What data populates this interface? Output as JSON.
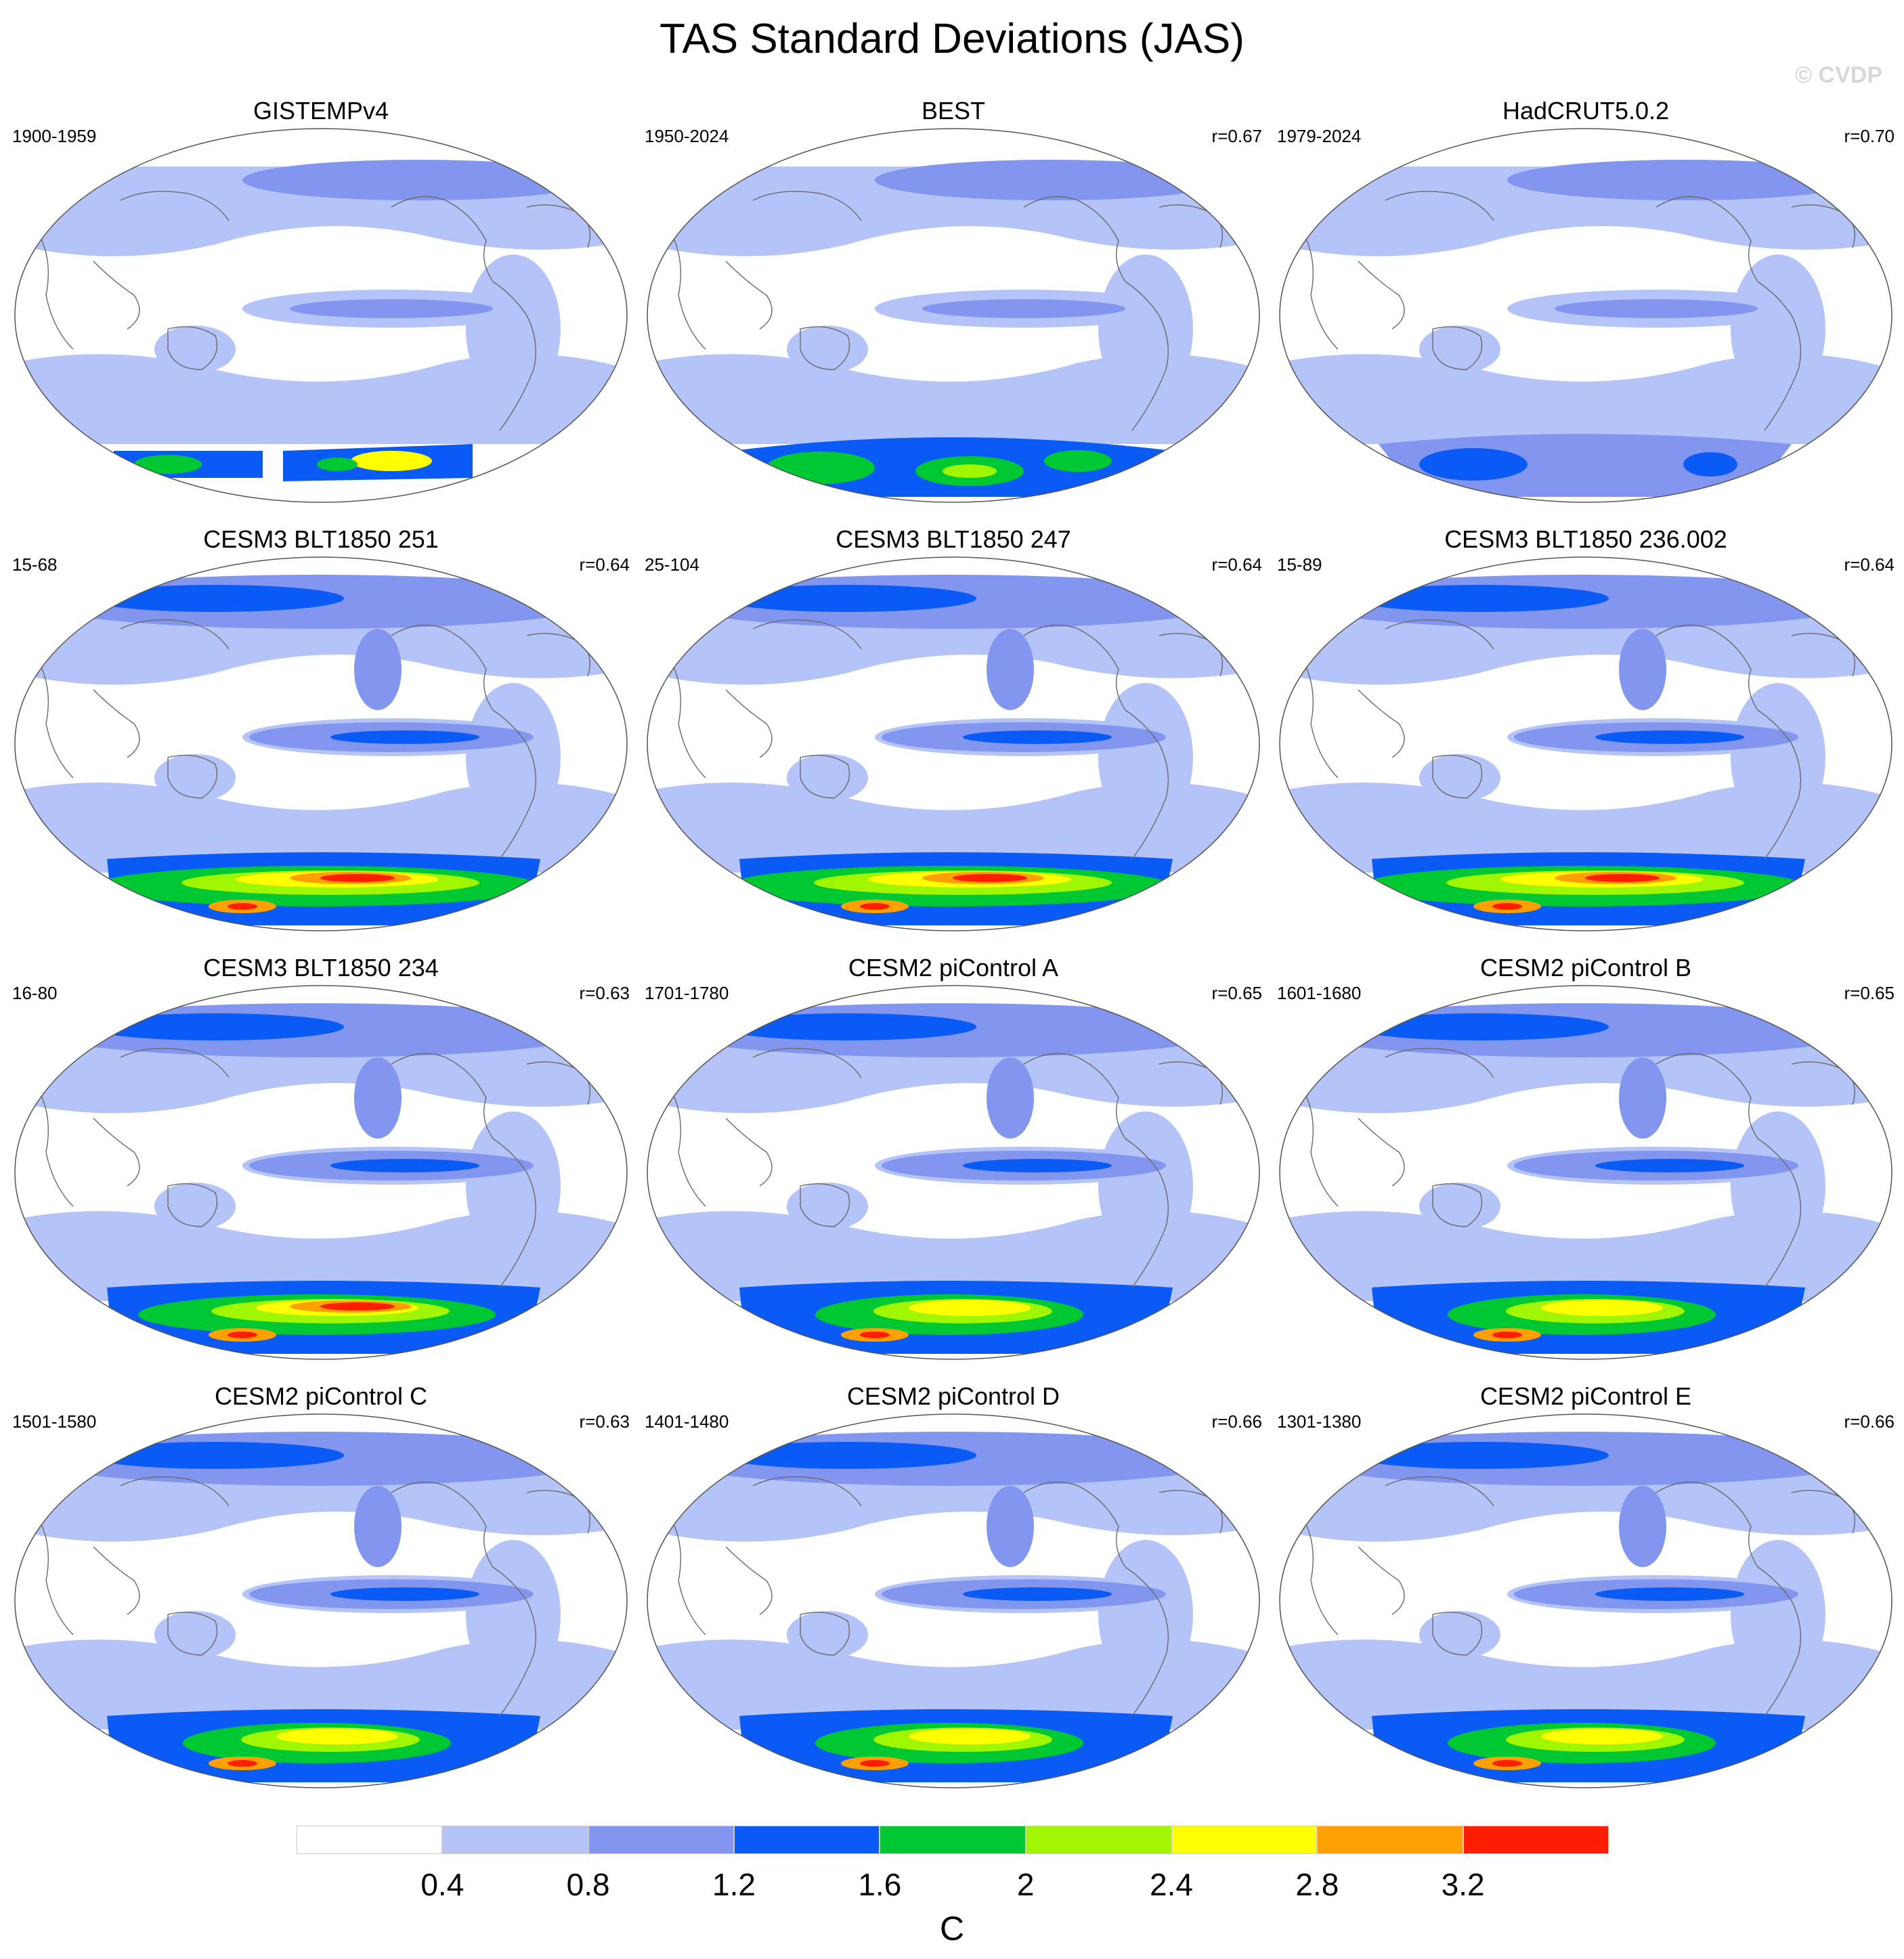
{
  "title": "TAS Standard Deviations (JAS)",
  "watermark": "© CVDP",
  "panels": [
    {
      "title": "GISTEMPv4",
      "period": "1900-1959",
      "corr": "",
      "style": "obs_gistemp"
    },
    {
      "title": "BEST",
      "period": "1950-2024",
      "corr": "r=0.67",
      "style": "obs_best"
    },
    {
      "title": "HadCRUT5.0.2",
      "period": "1979-2024",
      "corr": "r=0.70",
      "style": "obs_hadcrut"
    },
    {
      "title": "CESM3 BLT1850 251",
      "period": "15-68",
      "corr": "r=0.64",
      "style": "model_strong"
    },
    {
      "title": "CESM3 BLT1850 247",
      "period": "25-104",
      "corr": "r=0.64",
      "style": "model_strong"
    },
    {
      "title": "CESM3 BLT1850 236.002",
      "period": "15-89",
      "corr": "r=0.64",
      "style": "model_strong"
    },
    {
      "title": "CESM3 BLT1850 234",
      "period": "16-80",
      "corr": "r=0.63",
      "style": "model_medium"
    },
    {
      "title": "CESM2 piControl A",
      "period": "1701-1780",
      "corr": "r=0.65",
      "style": "model_weak"
    },
    {
      "title": "CESM2 piControl B",
      "period": "1601-1680",
      "corr": "r=0.65",
      "style": "model_weak"
    },
    {
      "title": "CESM2 piControl C",
      "period": "1501-1580",
      "corr": "r=0.63",
      "style": "model_weak"
    },
    {
      "title": "CESM2 piControl D",
      "period": "1401-1480",
      "corr": "r=0.66",
      "style": "model_weak"
    },
    {
      "title": "CESM2 piControl E",
      "period": "1301-1380",
      "corr": "r=0.66",
      "style": "model_weak"
    }
  ],
  "colorbar": {
    "units": "C",
    "ticks": [
      "0.4",
      "0.8",
      "1.2",
      "1.6",
      "2",
      "2.4",
      "2.8",
      "3.2"
    ],
    "colors": [
      "#ffffff",
      "#b4c3f8",
      "#8296f0",
      "#0a5af5",
      "#00c832",
      "#a0f500",
      "#ffff00",
      "#ffa000",
      "#ff1e00"
    ]
  }
}
